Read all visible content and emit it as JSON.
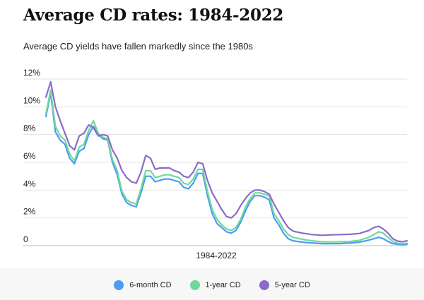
{
  "chart_data": {
    "type": "line",
    "title": "Average CD rates: 1984-2022",
    "subtitle": "Average CD yields have fallen markedly since the 1980s",
    "xlabel": "1984-2022",
    "ylabel": "",
    "x_range": [
      1984,
      2022
    ],
    "ylim": [
      0,
      12
    ],
    "y_ticks": [
      0,
      2,
      4,
      6,
      8,
      10,
      12
    ],
    "y_tick_labels": [
      "0",
      "2%",
      "4%",
      "6%",
      "8%",
      "10%",
      "12%"
    ],
    "grid": true,
    "legend_position": "bottom",
    "x": [
      1984,
      1984.5,
      1985,
      1985.5,
      1986,
      1986.5,
      1987,
      1987.5,
      1988,
      1988.5,
      1989,
      1989.5,
      1990,
      1990.5,
      1991,
      1991.5,
      1992,
      1992.5,
      1993,
      1993.5,
      1994,
      1994.5,
      1995,
      1995.5,
      1996,
      1996.5,
      1997,
      1997.5,
      1998,
      1998.5,
      1999,
      1999.5,
      2000,
      2000.5,
      2001,
      2001.5,
      2002,
      2002.5,
      2003,
      2003.5,
      2004,
      2004.5,
      2005,
      2005.5,
      2006,
      2006.5,
      2007,
      2007.5,
      2008,
      2008.5,
      2009,
      2009.5,
      2010,
      2011,
      2012,
      2013,
      2014,
      2015,
      2016,
      2017,
      2018,
      2018.5,
      2019,
      2019.5,
      2020,
      2020.5,
      2021,
      2021.5,
      2022
    ],
    "series": [
      {
        "name": "6-month CD",
        "color": "#4b9cf5",
        "values": [
          9.3,
          11.0,
          8.2,
          7.6,
          7.3,
          6.3,
          5.9,
          6.8,
          7.0,
          8.0,
          8.6,
          8.0,
          7.7,
          7.6,
          6.0,
          5.1,
          3.7,
          3.1,
          2.9,
          2.8,
          3.8,
          5.0,
          5.0,
          4.6,
          4.7,
          4.8,
          4.8,
          4.7,
          4.6,
          4.2,
          4.1,
          4.5,
          5.2,
          5.2,
          3.6,
          2.3,
          1.6,
          1.3,
          1.0,
          0.9,
          1.1,
          1.7,
          2.5,
          3.2,
          3.6,
          3.6,
          3.5,
          3.3,
          2.0,
          1.5,
          0.9,
          0.5,
          0.35,
          0.25,
          0.2,
          0.15,
          0.15,
          0.15,
          0.2,
          0.25,
          0.4,
          0.5,
          0.6,
          0.5,
          0.3,
          0.15,
          0.1,
          0.08,
          0.1
        ]
      },
      {
        "name": "1-year CD",
        "color": "#6fd99a",
        "values": [
          9.5,
          11.2,
          8.6,
          7.9,
          7.6,
          6.6,
          6.1,
          7.1,
          7.3,
          8.3,
          9.0,
          8.1,
          7.8,
          7.7,
          6.2,
          5.4,
          3.9,
          3.3,
          3.1,
          3.0,
          4.1,
          5.4,
          5.4,
          4.9,
          5.0,
          5.1,
          5.1,
          5.0,
          4.9,
          4.5,
          4.4,
          4.8,
          5.5,
          5.5,
          3.9,
          2.6,
          1.9,
          1.5,
          1.2,
          1.1,
          1.3,
          1.9,
          2.8,
          3.4,
          3.8,
          3.8,
          3.7,
          3.6,
          2.3,
          1.8,
          1.2,
          0.8,
          0.6,
          0.45,
          0.35,
          0.28,
          0.27,
          0.28,
          0.3,
          0.38,
          0.6,
          0.8,
          1.0,
          0.9,
          0.6,
          0.3,
          0.18,
          0.14,
          0.18
        ]
      },
      {
        "name": "5-year CD",
        "color": "#8c6bc9",
        "values": [
          10.7,
          11.8,
          10.0,
          9.0,
          8.1,
          7.2,
          6.9,
          7.9,
          8.1,
          8.7,
          8.5,
          7.9,
          8.0,
          7.9,
          6.9,
          6.3,
          5.4,
          4.9,
          4.6,
          4.5,
          5.3,
          6.5,
          6.3,
          5.5,
          5.6,
          5.6,
          5.6,
          5.4,
          5.3,
          5.0,
          4.9,
          5.3,
          6.0,
          5.9,
          4.7,
          3.8,
          3.2,
          2.6,
          2.1,
          2.0,
          2.3,
          2.9,
          3.4,
          3.8,
          4.0,
          4.0,
          3.9,
          3.7,
          3.0,
          2.4,
          1.8,
          1.3,
          1.05,
          0.9,
          0.8,
          0.75,
          0.78,
          0.8,
          0.82,
          0.88,
          1.1,
          1.3,
          1.4,
          1.2,
          0.9,
          0.5,
          0.33,
          0.28,
          0.35
        ]
      }
    ]
  }
}
